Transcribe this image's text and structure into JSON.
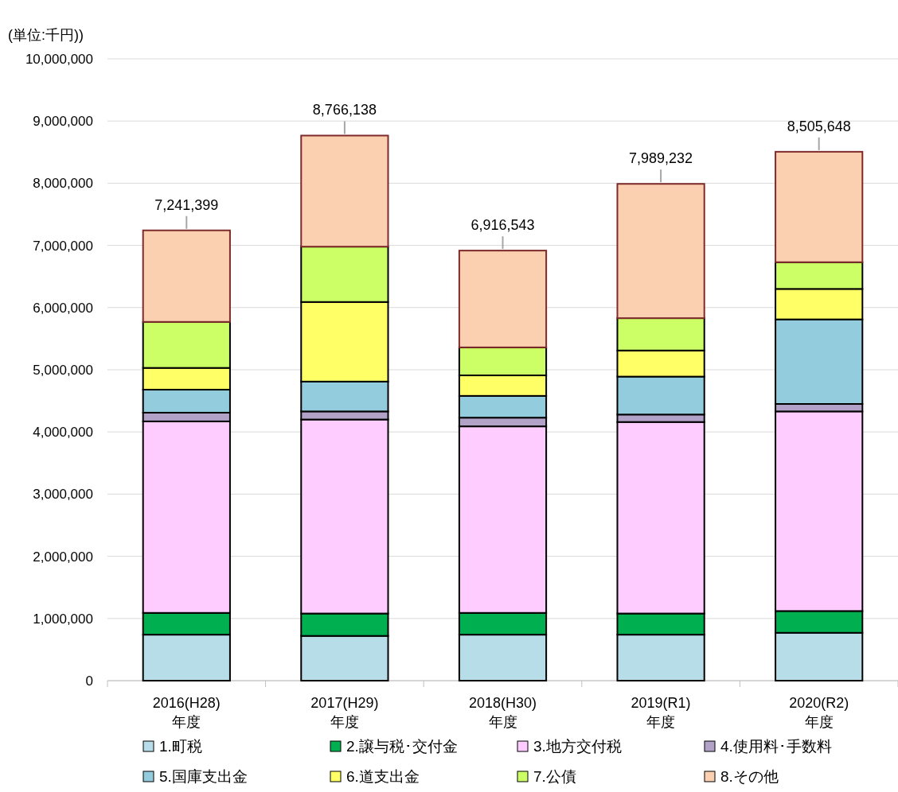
{
  "chart_data": {
    "type": "bar",
    "stacked": true,
    "categories": [
      "2016(H28)\n年度",
      "2017(H29)\n年度",
      "2018(H30)\n年度",
      "2019(R1)\n年度",
      "2020(R2)\n年度"
    ],
    "series": [
      {
        "name": "1.町税",
        "color": "#b7dee8",
        "values": [
          740000,
          720000,
          740000,
          740000,
          770000
        ]
      },
      {
        "name": "2.譲与税･交付金",
        "color": "#00b050",
        "values": [
          350000,
          360000,
          350000,
          340000,
          350000
        ]
      },
      {
        "name": "3.地方交付税",
        "color": "#ffccff",
        "values": [
          3080000,
          3120000,
          3000000,
          3080000,
          3210000
        ]
      },
      {
        "name": "4.使用料･手数料",
        "color": "#b3a2c7",
        "values": [
          140000,
          130000,
          140000,
          120000,
          120000
        ]
      },
      {
        "name": "5.国庫支出金",
        "color": "#93cddd",
        "values": [
          370000,
          480000,
          350000,
          610000,
          1360000
        ]
      },
      {
        "name": "6.道支出金",
        "color": "#ffff66",
        "values": [
          350000,
          1280000,
          330000,
          420000,
          490000
        ]
      },
      {
        "name": "7.公債",
        "color": "#ccff66",
        "values": [
          740000,
          890000,
          450000,
          520000,
          430000
        ]
      },
      {
        "name": "8.その他",
        "color": "#fad0b0",
        "values": [
          1471399,
          1786138,
          1556543,
          2159232,
          1775648
        ]
      }
    ],
    "totals": [
      "7,241,399",
      "8,766,138",
      "6,916,543",
      "7,989,232",
      "8,505,648"
    ],
    "ylim": [
      0,
      10000000
    ],
    "yticks": [
      {
        "value": 0,
        "label": "0"
      },
      {
        "value": 1000000,
        "label": "1,000,000"
      },
      {
        "value": 2000000,
        "label": "2,000,000"
      },
      {
        "value": 3000000,
        "label": "3,000,000"
      },
      {
        "value": 4000000,
        "label": "4,000,000"
      },
      {
        "value": 5000000,
        "label": "5,000,000"
      },
      {
        "value": 6000000,
        "label": "6,000,000"
      },
      {
        "value": 7000000,
        "label": "7,000,000"
      },
      {
        "value": 8000000,
        "label": "8,000,000"
      },
      {
        "value": 9000000,
        "label": "9,000,000"
      },
      {
        "value": 10000000,
        "label": "10,000,000"
      }
    ],
    "grid": "y",
    "legend": "bottom",
    "annotations": [
      "(単位:千円))"
    ]
  }
}
